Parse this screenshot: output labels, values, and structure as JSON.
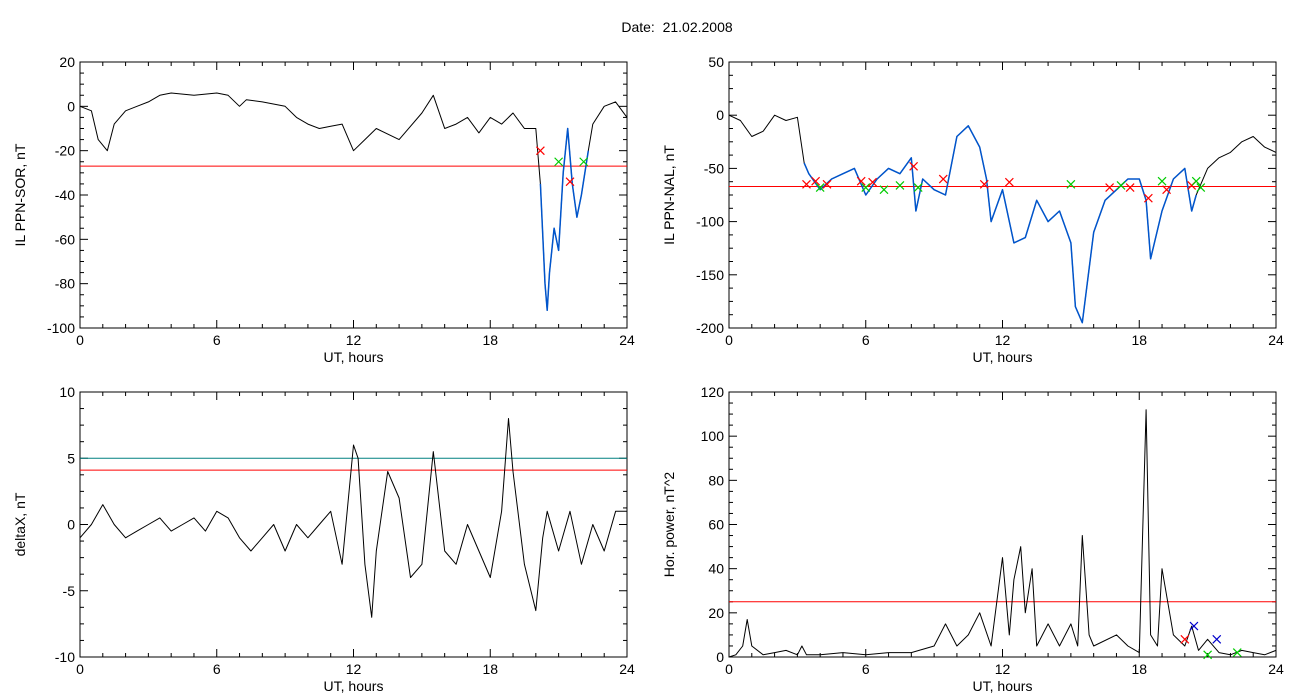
{
  "figure": {
    "title": "Date:  21.02.2008",
    "colors": {
      "trace": "#000000",
      "threshold": "#ff0000",
      "highlight": "#0055cc",
      "level": "#008080",
      "marker_red": "#ff0000",
      "marker_green": "#00cc00",
      "marker_blue": "#0000cc"
    }
  },
  "chart_data": [
    {
      "type": "line",
      "xlabel": "UT, hours",
      "ylabel": "IL PPN-SOR, nT",
      "xlim": [
        0,
        24
      ],
      "ylim": [
        -100,
        20
      ],
      "xticks": [
        0,
        6,
        12,
        18,
        24
      ],
      "yticks": [
        -100,
        -80,
        -60,
        -40,
        -20,
        0,
        20
      ],
      "series": [
        {
          "x": [
            0,
            0.5,
            0.8,
            1.2,
            1.5,
            2,
            2.5,
            3,
            3.5,
            4,
            5,
            6,
            6.5,
            7,
            7.3,
            8,
            9,
            9.5,
            10,
            10.5,
            11,
            11.5,
            12,
            12.5,
            13,
            14,
            15,
            15.5,
            16,
            16.5,
            17,
            17.5,
            18,
            18.5,
            19,
            19.5,
            20,
            20.2,
            20.4,
            20.5,
            20.6,
            20.8,
            21,
            21.2,
            21.4,
            21.6,
            21.8,
            22,
            22.3,
            22.5,
            23,
            23.5,
            24
          ],
          "y": [
            0,
            -2,
            -15,
            -20,
            -8,
            -2,
            0,
            2,
            5,
            6,
            5,
            6,
            5,
            0,
            3,
            2,
            0,
            -5,
            -8,
            -10,
            -9,
            -8,
            -20,
            -15,
            -10,
            -15,
            -3,
            5,
            -10,
            -8,
            -5,
            -12,
            -5,
            -8,
            -3,
            -10,
            -10,
            -35,
            -80,
            -92,
            -75,
            -55,
            -65,
            -30,
            -10,
            -35,
            -50,
            -40,
            -20,
            -8,
            0,
            2,
            -5
          ]
        }
      ],
      "highlight_x": [
        20.1,
        22.3
      ],
      "thresholds": [
        -27
      ],
      "markers": [
        {
          "x": 20.2,
          "y": -20,
          "color": "red"
        },
        {
          "x": 21.0,
          "y": -25,
          "color": "green"
        },
        {
          "x": 21.5,
          "y": -34,
          "color": "red"
        },
        {
          "x": 22.1,
          "y": -25,
          "color": "green"
        }
      ]
    },
    {
      "type": "line",
      "xlabel": "UT, hours",
      "ylabel": "IL PPN-NAL, nT",
      "xlim": [
        0,
        24
      ],
      "ylim": [
        -200,
        50
      ],
      "xticks": [
        0,
        6,
        12,
        18,
        24
      ],
      "yticks": [
        -200,
        -150,
        -100,
        -50,
        0,
        50
      ],
      "series": [
        {
          "x": [
            0,
            0.5,
            1,
            1.5,
            2,
            2.5,
            3,
            3.3,
            3.5,
            4,
            4.5,
            5,
            5.5,
            6,
            6.5,
            7,
            7.5,
            8,
            8.2,
            8.5,
            9,
            9.5,
            10,
            10.5,
            11,
            11.3,
            11.5,
            12,
            12.5,
            13,
            13.5,
            14,
            14.5,
            15,
            15.2,
            15.5,
            16,
            16.5,
            17,
            17.5,
            18,
            18.3,
            18.5,
            19,
            19.5,
            20,
            20.3,
            20.5,
            21,
            21.5,
            22,
            22.5,
            23,
            23.5,
            24
          ],
          "y": [
            0,
            -5,
            -20,
            -15,
            0,
            -5,
            -2,
            -45,
            -55,
            -70,
            -60,
            -55,
            -50,
            -75,
            -60,
            -50,
            -55,
            -40,
            -90,
            -60,
            -70,
            -75,
            -20,
            -10,
            -30,
            -60,
            -100,
            -70,
            -120,
            -115,
            -80,
            -100,
            -90,
            -120,
            -180,
            -195,
            -110,
            -80,
            -70,
            -60,
            -60,
            -80,
            -135,
            -90,
            -60,
            -50,
            -90,
            -75,
            -50,
            -40,
            -35,
            -25,
            -20,
            -30,
            -35
          ]
        }
      ],
      "highlight_x": [
        3.2,
        20.8
      ],
      "thresholds": [
        -67
      ],
      "markers": [
        {
          "x": 3.4,
          "y": -65,
          "color": "red"
        },
        {
          "x": 3.8,
          "y": -62,
          "color": "red"
        },
        {
          "x": 4.0,
          "y": -68,
          "color": "green"
        },
        {
          "x": 4.3,
          "y": -65,
          "color": "red"
        },
        {
          "x": 5.8,
          "y": -62,
          "color": "red"
        },
        {
          "x": 6.0,
          "y": -68,
          "color": "green"
        },
        {
          "x": 6.3,
          "y": -63,
          "color": "red"
        },
        {
          "x": 6.8,
          "y": -70,
          "color": "green"
        },
        {
          "x": 7.5,
          "y": -66,
          "color": "green"
        },
        {
          "x": 8.1,
          "y": -48,
          "color": "red"
        },
        {
          "x": 8.3,
          "y": -68,
          "color": "green"
        },
        {
          "x": 9.4,
          "y": -60,
          "color": "red"
        },
        {
          "x": 11.2,
          "y": -65,
          "color": "red"
        },
        {
          "x": 12.3,
          "y": -63,
          "color": "red"
        },
        {
          "x": 15.0,
          "y": -65,
          "color": "green"
        },
        {
          "x": 16.7,
          "y": -68,
          "color": "red"
        },
        {
          "x": 17.2,
          "y": -66,
          "color": "green"
        },
        {
          "x": 17.6,
          "y": -68,
          "color": "red"
        },
        {
          "x": 18.4,
          "y": -78,
          "color": "red"
        },
        {
          "x": 19.0,
          "y": -62,
          "color": "green"
        },
        {
          "x": 19.2,
          "y": -70,
          "color": "red"
        },
        {
          "x": 20.3,
          "y": -66,
          "color": "red"
        },
        {
          "x": 20.5,
          "y": -62,
          "color": "green"
        },
        {
          "x": 20.7,
          "y": -68,
          "color": "green"
        }
      ]
    },
    {
      "type": "line",
      "xlabel": "UT, hours",
      "ylabel": "deltaX, nT",
      "xlim": [
        0,
        24
      ],
      "ylim": [
        -10,
        10
      ],
      "xticks": [
        0,
        6,
        12,
        18,
        24
      ],
      "yticks": [
        -10,
        -5,
        0,
        5,
        10
      ],
      "series": [
        {
          "x": [
            0,
            0.5,
            1,
            1.5,
            2,
            2.5,
            3,
            3.5,
            4,
            4.5,
            5,
            5.5,
            6,
            6.5,
            7,
            7.5,
            8,
            8.5,
            9,
            9.5,
            10,
            10.5,
            11,
            11.5,
            12,
            12.2,
            12.5,
            12.8,
            13,
            13.5,
            14,
            14.5,
            15,
            15.5,
            16,
            16.5,
            17,
            17.5,
            18,
            18.5,
            18.8,
            19,
            19.5,
            20,
            20.3,
            20.5,
            21,
            21.5,
            22,
            22.5,
            23,
            23.5,
            24
          ],
          "y": [
            -1,
            0,
            1.5,
            0,
            -1,
            -0.5,
            0,
            0.5,
            -0.5,
            0,
            0.5,
            -0.5,
            1,
            0.5,
            -1,
            -2,
            -1,
            0,
            -2,
            0,
            -1,
            0,
            1,
            -3,
            6,
            5,
            -3,
            -7,
            -2,
            4,
            2,
            -4,
            -3,
            5.5,
            -2,
            -3,
            0,
            -2,
            -4,
            1,
            8,
            4,
            -3,
            -6.5,
            -1,
            1,
            -2,
            1,
            -3,
            0,
            -2,
            1,
            1
          ]
        }
      ],
      "thresholds": [
        4.1
      ],
      "level_lines": [
        5
      ]
    },
    {
      "type": "line",
      "xlabel": "UT, hours",
      "ylabel": "Hor. power, nT^2",
      "xlim": [
        0,
        24
      ],
      "ylim": [
        0,
        120
      ],
      "xticks": [
        0,
        6,
        12,
        18,
        24
      ],
      "yticks": [
        0,
        20,
        40,
        60,
        80,
        100,
        120
      ],
      "series": [
        {
          "x": [
            0,
            0.3,
            0.6,
            0.8,
            1,
            1.5,
            2,
            2.5,
            3,
            3.2,
            3.4,
            4,
            5,
            6,
            7,
            8,
            9,
            9.5,
            10,
            10.5,
            11,
            11.5,
            12,
            12.3,
            12.5,
            12.8,
            13,
            13.3,
            13.5,
            14,
            14.5,
            15,
            15.3,
            15.5,
            15.8,
            16,
            17,
            17.5,
            18,
            18.3,
            18.5,
            18.8,
            19,
            19.5,
            20,
            20.3,
            20.6,
            21,
            21.5,
            22,
            22.5,
            23,
            23.5,
            24
          ],
          "y": [
            0,
            1,
            5,
            17,
            5,
            1,
            2,
            3,
            1,
            5,
            1,
            1,
            2,
            1,
            2,
            2,
            5,
            15,
            5,
            10,
            20,
            5,
            45,
            10,
            35,
            50,
            20,
            40,
            5,
            15,
            5,
            15,
            5,
            55,
            10,
            5,
            10,
            5,
            2,
            112,
            10,
            5,
            40,
            10,
            5,
            14,
            3,
            8,
            2,
            1,
            3,
            2,
            1,
            3
          ]
        }
      ],
      "thresholds": [
        25
      ],
      "markers": [
        {
          "x": 20.0,
          "y": 8,
          "color": "red"
        },
        {
          "x": 20.4,
          "y": 14,
          "color": "blue"
        },
        {
          "x": 21.4,
          "y": 8,
          "color": "blue"
        },
        {
          "x": 21.0,
          "y": 1,
          "color": "green"
        },
        {
          "x": 22.3,
          "y": 2,
          "color": "green"
        }
      ]
    }
  ]
}
